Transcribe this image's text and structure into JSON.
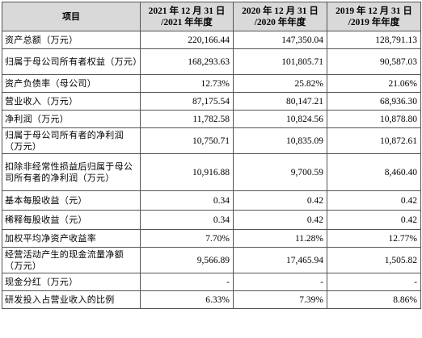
{
  "table": {
    "headers": [
      {
        "line1": "项目",
        "line2": ""
      },
      {
        "line1": "2021 年 12 月 31 日",
        "line2": "/2021 年年度"
      },
      {
        "line1": "2020 年 12 月 31 日",
        "line2": "/2020 年年度"
      },
      {
        "line1": "2019 年 12 月 31 日",
        "line2": "/2019 年年度"
      }
    ],
    "rows": [
      {
        "label": "资产总额（万元）",
        "values": [
          "220,166.44",
          "147,350.04",
          "128,791.13"
        ]
      },
      {
        "label": "归属于母公司所有者权益（万元）",
        "values": [
          "168,293.63",
          "101,805.71",
          "90,587.03"
        ]
      },
      {
        "label": "资产负债率（母公司）",
        "values": [
          "12.73%",
          "25.82%",
          "21.06%"
        ]
      },
      {
        "label": "营业收入（万元）",
        "values": [
          "87,175.54",
          "80,147.21",
          "68,936.30"
        ]
      },
      {
        "label": "净利润（万元）",
        "values": [
          "11,782.58",
          "10,824.56",
          "10,878.80"
        ]
      },
      {
        "label": "归属于母公司所有者的净利润（万元）",
        "values": [
          "10,750.71",
          "10,835.09",
          "10,872.61"
        ]
      },
      {
        "label": "扣除非经常性损益后归属于母公司所有者的净利润（万元）",
        "values": [
          "10,916.88",
          "9,700.59",
          "8,460.40"
        ]
      },
      {
        "label": "基本每股收益（元）",
        "values": [
          "0.34",
          "0.42",
          "0.42"
        ]
      },
      {
        "label": "稀释每股收益（元）",
        "values": [
          "0.34",
          "0.42",
          "0.42"
        ]
      },
      {
        "label": "加权平均净资产收益率",
        "values": [
          "7.70%",
          "11.28%",
          "12.77%"
        ]
      },
      {
        "label": "经营活动产生的现金流量净额（万元）",
        "values": [
          "9,566.89",
          "17,465.94",
          "1,505.82"
        ]
      },
      {
        "label": "现金分红（万元）",
        "values": [
          "-",
          "-",
          "-"
        ]
      },
      {
        "label": "研发投入占营业收入的比例",
        "values": [
          "6.33%",
          "7.39%",
          "8.86%"
        ]
      }
    ]
  }
}
